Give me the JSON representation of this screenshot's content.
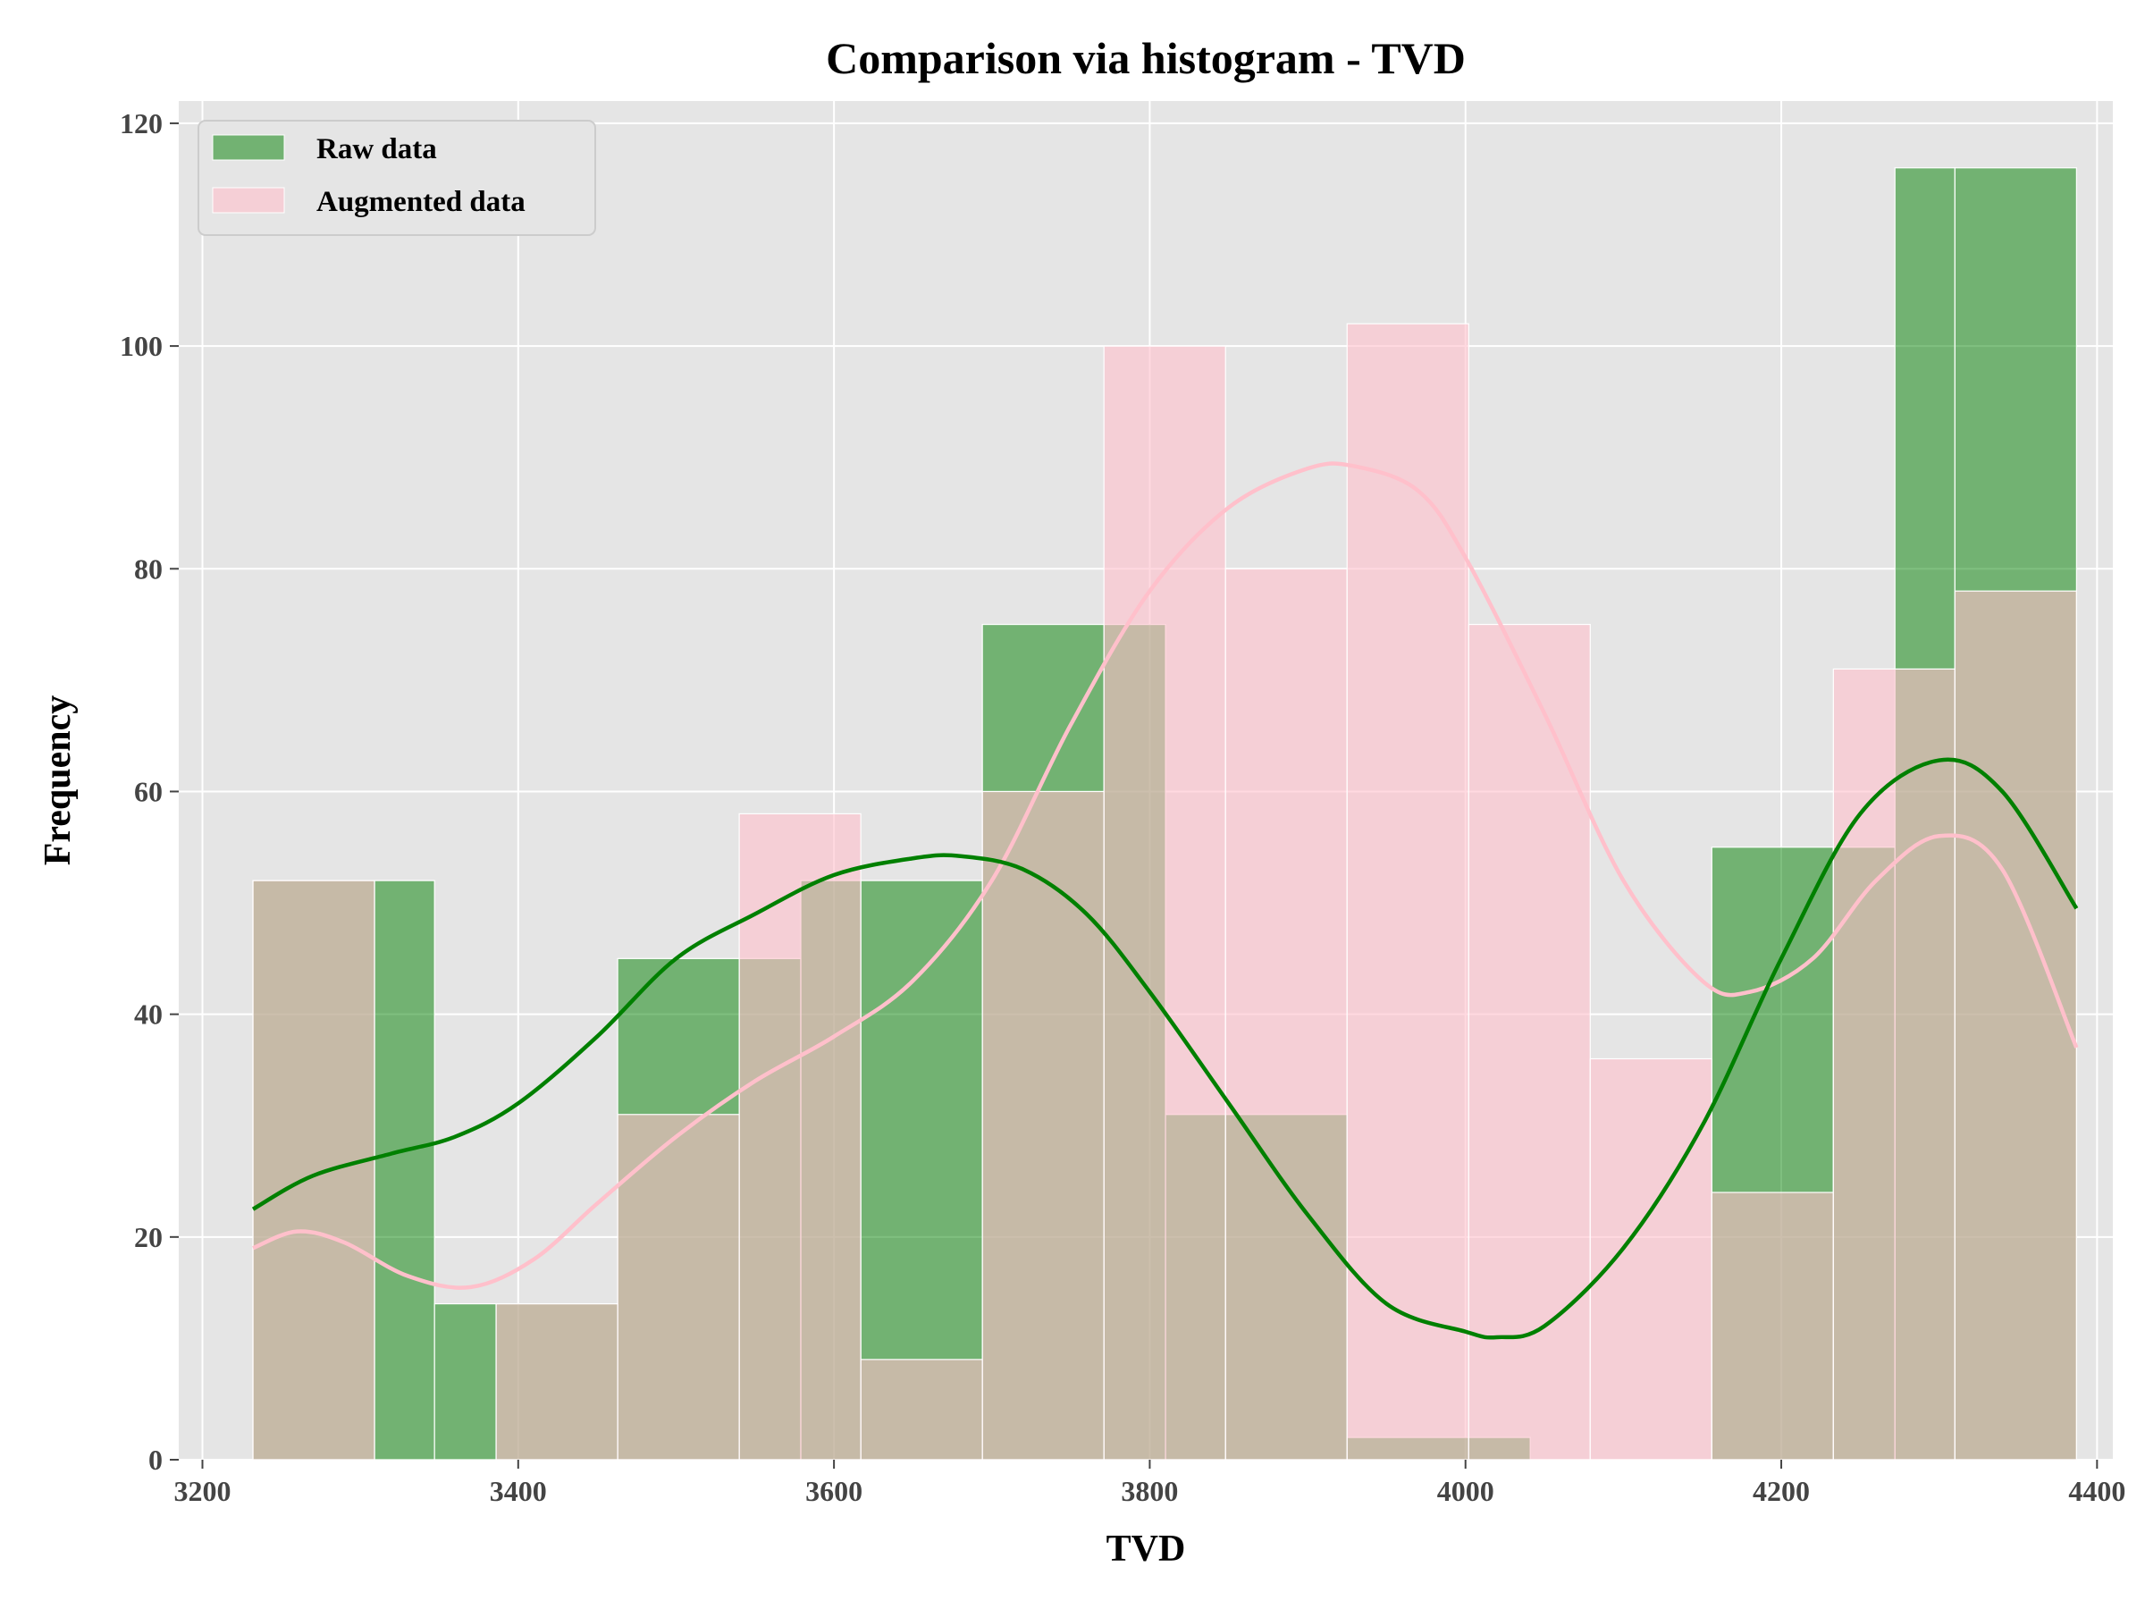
{
  "chart_data": {
    "type": "histogram",
    "title": "Comparison via histogram - TVD",
    "xlabel": "TVD",
    "ylabel": "Frequency",
    "xlim": [
      3185,
      4410
    ],
    "ylim": [
      0,
      122
    ],
    "xticks": [
      3200,
      3400,
      3600,
      3800,
      4000,
      4200,
      4400
    ],
    "yticks": [
      0,
      20,
      40,
      60,
      80,
      100,
      120
    ],
    "grid": true,
    "legend_position": "upper-left",
    "series": [
      {
        "name": "Raw data",
        "color": "#008000",
        "bins": [
          {
            "x0": 3232,
            "x1": 3309,
            "value": 52
          },
          {
            "x0": 3309,
            "x1": 3347,
            "value": 52
          },
          {
            "x0": 3347,
            "x1": 3386,
            "value": 14
          },
          {
            "x0": 3386,
            "x1": 3463,
            "value": 14
          },
          {
            "x0": 3463,
            "x1": 3540,
            "value": 45
          },
          {
            "x0": 3540,
            "x1": 3579,
            "value": 45
          },
          {
            "x0": 3579,
            "x1": 3617,
            "value": 52
          },
          {
            "x0": 3617,
            "x1": 3694,
            "value": 52
          },
          {
            "x0": 3694,
            "x1": 3771,
            "value": 75
          },
          {
            "x0": 3771,
            "x1": 3810,
            "value": 75
          },
          {
            "x0": 3810,
            "x1": 3848,
            "value": 31
          },
          {
            "x0": 3848,
            "x1": 3925,
            "value": 31
          },
          {
            "x0": 3925,
            "x1": 4002,
            "value": 2
          },
          {
            "x0": 4002,
            "x1": 4041,
            "value": 2
          },
          {
            "x0": 4041,
            "x1": 4079,
            "value": 0
          },
          {
            "x0": 4079,
            "x1": 4156,
            "value": 0
          },
          {
            "x0": 4156,
            "x1": 4233,
            "value": 55
          },
          {
            "x0": 4233,
            "x1": 4272,
            "value": 55
          },
          {
            "x0": 4272,
            "x1": 4310,
            "value": 116
          },
          {
            "x0": 4310,
            "x1": 4387,
            "value": 116
          }
        ],
        "kde": [
          [
            3232,
            22.5
          ],
          [
            3270,
            25.5
          ],
          [
            3320,
            27.5
          ],
          [
            3360,
            29
          ],
          [
            3400,
            32
          ],
          [
            3450,
            38
          ],
          [
            3500,
            45
          ],
          [
            3550,
            49
          ],
          [
            3600,
            52.5
          ],
          [
            3650,
            54
          ],
          [
            3680,
            54.2
          ],
          [
            3720,
            53
          ],
          [
            3760,
            49
          ],
          [
            3800,
            42
          ],
          [
            3850,
            32
          ],
          [
            3900,
            22
          ],
          [
            3950,
            14
          ],
          [
            4000,
            11.5
          ],
          [
            4020,
            11
          ],
          [
            4050,
            12
          ],
          [
            4100,
            19
          ],
          [
            4150,
            30
          ],
          [
            4200,
            45
          ],
          [
            4250,
            58
          ],
          [
            4300,
            62.8
          ],
          [
            4340,
            60
          ],
          [
            4387,
            49.5
          ]
        ]
      },
      {
        "name": "Augmented data",
        "color": "#ffc0cb",
        "bins": [
          {
            "x0": 3232,
            "x1": 3309,
            "value": 52
          },
          {
            "x0": 3309,
            "x1": 3386,
            "value": 0
          },
          {
            "x0": 3386,
            "x1": 3463,
            "value": 14
          },
          {
            "x0": 3463,
            "x1": 3540,
            "value": 31
          },
          {
            "x0": 3540,
            "x1": 3617,
            "value": 58
          },
          {
            "x0": 3617,
            "x1": 3694,
            "value": 9
          },
          {
            "x0": 3694,
            "x1": 3771,
            "value": 60
          },
          {
            "x0": 3771,
            "x1": 3848,
            "value": 100
          },
          {
            "x0": 3848,
            "x1": 3925,
            "value": 80
          },
          {
            "x0": 3925,
            "x1": 4002,
            "value": 102
          },
          {
            "x0": 4002,
            "x1": 4079,
            "value": 75
          },
          {
            "x0": 4079,
            "x1": 4156,
            "value": 36
          },
          {
            "x0": 4156,
            "x1": 4233,
            "value": 24
          },
          {
            "x0": 4233,
            "x1": 4310,
            "value": 71
          },
          {
            "x0": 4310,
            "x1": 4387,
            "value": 78
          }
        ],
        "kde": [
          [
            3232,
            19
          ],
          [
            3260,
            20.5
          ],
          [
            3290,
            19.5
          ],
          [
            3330,
            16.5
          ],
          [
            3370,
            15.5
          ],
          [
            3410,
            18
          ],
          [
            3450,
            23
          ],
          [
            3500,
            29
          ],
          [
            3550,
            34
          ],
          [
            3600,
            38
          ],
          [
            3650,
            43
          ],
          [
            3700,
            52
          ],
          [
            3750,
            66
          ],
          [
            3800,
            78
          ],
          [
            3850,
            85.5
          ],
          [
            3900,
            89
          ],
          [
            3930,
            89.2
          ],
          [
            3970,
            87
          ],
          [
            4000,
            81
          ],
          [
            4050,
            67
          ],
          [
            4100,
            52
          ],
          [
            4150,
            43
          ],
          [
            4180,
            42
          ],
          [
            4220,
            45
          ],
          [
            4260,
            52
          ],
          [
            4300,
            56
          ],
          [
            4340,
            53
          ],
          [
            4387,
            37
          ]
        ]
      }
    ]
  }
}
